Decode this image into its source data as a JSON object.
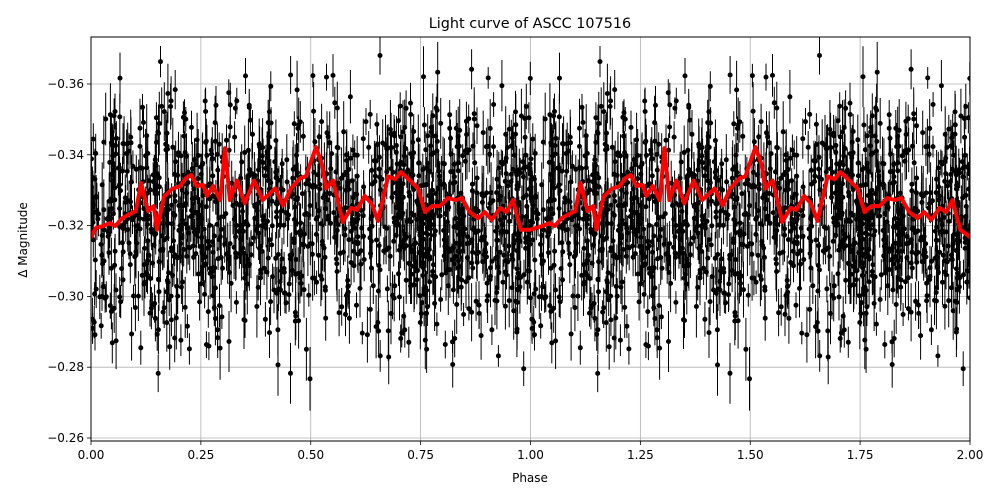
{
  "chart_data": {
    "type": "scatter",
    "title": "Light curve of ASCC 107516",
    "xlabel": "Phase",
    "ylabel": "Δ Magnitude",
    "xlim": [
      0.0,
      2.0
    ],
    "ylim": [
      -0.2592,
      -0.3733
    ],
    "y_inverted": true,
    "grid": true,
    "legend": null,
    "x_ticks": [
      0.0,
      0.25,
      0.5,
      0.75,
      1.0,
      1.25,
      1.5,
      1.75,
      2.0
    ],
    "x_tick_labels": [
      "0.00",
      "0.25",
      "0.50",
      "0.75",
      "1.00",
      "1.25",
      "1.50",
      "1.75",
      "2.00"
    ],
    "y_ticks": [
      -0.36,
      -0.34,
      -0.32,
      -0.3,
      -0.28,
      -0.26
    ],
    "y_tick_labels": [
      "−0.36",
      "−0.34",
      "−0.32",
      "−0.30",
      "−0.28",
      "−0.26"
    ],
    "series": [
      {
        "name": "observations",
        "kind": "errorbar-scatter",
        "color": "#000000",
        "description": "Dense phase-folded photometric points with vertical error bars, spread roughly from -0.373 to -0.259 magnitude, concentrated around -0.32; repeated across two phase cycles"
      },
      {
        "name": "binned mean",
        "kind": "line",
        "color": "#ff0000",
        "linewidth": 4,
        "x": [
          0.0,
          0.011,
          0.027,
          0.043,
          0.055,
          0.071,
          0.089,
          0.102,
          0.114,
          0.13,
          0.143,
          0.15,
          0.166,
          0.184,
          0.203,
          0.216,
          0.228,
          0.241,
          0.255,
          0.264,
          0.278,
          0.294,
          0.305,
          0.316,
          0.332,
          0.35,
          0.371,
          0.391,
          0.419,
          0.437,
          0.455,
          0.476,
          0.489,
          0.512,
          0.526,
          0.535,
          0.551,
          0.573,
          0.592,
          0.605,
          0.623,
          0.639,
          0.653,
          0.676,
          0.692,
          0.705,
          0.726,
          0.744,
          0.76,
          0.776,
          0.794,
          0.812,
          0.83,
          0.844,
          0.862,
          0.881,
          0.896,
          0.912,
          0.931,
          0.946,
          0.96,
          0.978,
          0.999,
          1.011,
          1.027,
          1.043,
          1.055,
          1.071,
          1.089,
          1.102,
          1.114,
          1.13,
          1.143,
          1.15,
          1.166,
          1.184,
          1.203,
          1.216,
          1.228,
          1.241,
          1.255,
          1.264,
          1.278,
          1.294,
          1.305,
          1.316,
          1.332,
          1.35,
          1.371,
          1.391,
          1.419,
          1.437,
          1.455,
          1.476,
          1.489,
          1.512,
          1.526,
          1.535,
          1.551,
          1.573,
          1.592,
          1.605,
          1.623,
          1.639,
          1.653,
          1.676,
          1.692,
          1.705,
          1.726,
          1.744,
          1.76,
          1.776,
          1.794,
          1.812,
          1.83,
          1.844,
          1.862,
          1.881,
          1.896,
          1.912,
          1.931,
          1.946,
          1.96,
          1.978,
          2.0
        ],
        "y": [
          -0.3168,
          -0.3193,
          -0.3199,
          -0.3207,
          -0.3199,
          -0.3221,
          -0.3233,
          -0.3241,
          -0.332,
          -0.3241,
          -0.3255,
          -0.3188,
          -0.3281,
          -0.3303,
          -0.3312,
          -0.3334,
          -0.3343,
          -0.3312,
          -0.3315,
          -0.3284,
          -0.3312,
          -0.3272,
          -0.3419,
          -0.3272,
          -0.3327,
          -0.3263,
          -0.3327,
          -0.3272,
          -0.3305,
          -0.3257,
          -0.3305,
          -0.3334,
          -0.3339,
          -0.3422,
          -0.3371,
          -0.3305,
          -0.3327,
          -0.321,
          -0.325,
          -0.3244,
          -0.3284,
          -0.3261,
          -0.3213,
          -0.3339,
          -0.3331,
          -0.3351,
          -0.3327,
          -0.3305,
          -0.3238,
          -0.3255,
          -0.3255,
          -0.3278,
          -0.3272,
          -0.3278,
          -0.3238,
          -0.3221,
          -0.3238,
          -0.3216,
          -0.325,
          -0.3238,
          -0.3272,
          -0.3188,
          -0.3188,
          -0.3193,
          -0.3199,
          -0.3207,
          -0.3199,
          -0.3221,
          -0.3233,
          -0.3241,
          -0.332,
          -0.3241,
          -0.3255,
          -0.3188,
          -0.3281,
          -0.3303,
          -0.3312,
          -0.3334,
          -0.3343,
          -0.3312,
          -0.3315,
          -0.3284,
          -0.3312,
          -0.3272,
          -0.3419,
          -0.3272,
          -0.3327,
          -0.3263,
          -0.3327,
          -0.3272,
          -0.3305,
          -0.3257,
          -0.3305,
          -0.3334,
          -0.3339,
          -0.3422,
          -0.3371,
          -0.3305,
          -0.3327,
          -0.321,
          -0.325,
          -0.3244,
          -0.3284,
          -0.3261,
          -0.3213,
          -0.3339,
          -0.3331,
          -0.3351,
          -0.3327,
          -0.3305,
          -0.3238,
          -0.3255,
          -0.3255,
          -0.3278,
          -0.3272,
          -0.3278,
          -0.3238,
          -0.3221,
          -0.3238,
          -0.3216,
          -0.325,
          -0.3238,
          -0.3272,
          -0.3188,
          -0.3168
        ]
      }
    ]
  }
}
